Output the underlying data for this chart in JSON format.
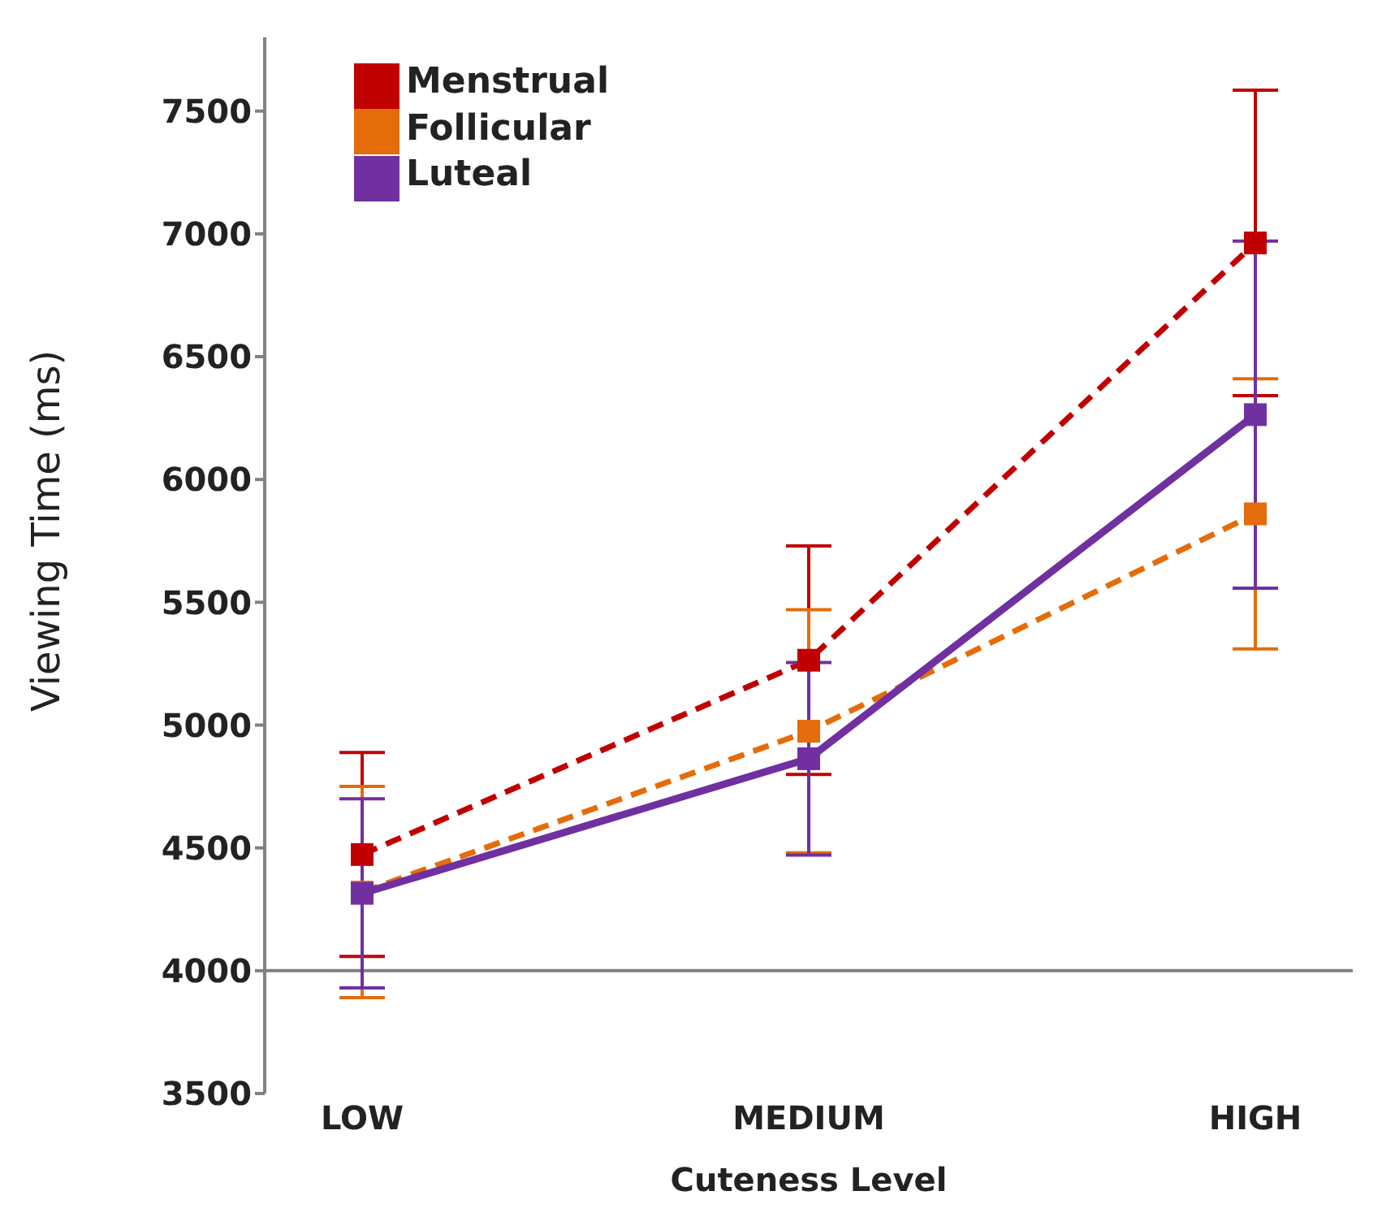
{
  "chart_data": {
    "type": "line",
    "xlabel": "Cuteness Level",
    "ylabel": "Viewing Time (ms)",
    "categories": [
      "LOW",
      "MEDIUM",
      "HIGH"
    ],
    "series": [
      {
        "name": "Menstrual",
        "color": "#c00000",
        "values": [
          4473,
          5264,
          6963
        ],
        "errors": [
          415,
          465,
          622
        ],
        "line_style": "dashed"
      },
      {
        "name": "Follicular",
        "color": "#e46c0a",
        "values": [
          4320,
          4975,
          5860
        ],
        "errors": [
          430,
          495,
          550
        ],
        "line_style": "dashed"
      },
      {
        "name": "Luteal",
        "color": "#7030a0",
        "values": [
          4315,
          4863,
          6264
        ],
        "errors": [
          385,
          392,
          707
        ],
        "line_style": "solid"
      }
    ],
    "ylim": [
      3500,
      7800
    ],
    "yticks": [
      3500,
      4000,
      4500,
      5000,
      5500,
      6000,
      6500,
      7000,
      7500
    ],
    "ref_lines": [
      {
        "axis": "y",
        "value": 4000,
        "color": "#808080"
      }
    ],
    "marker": "square",
    "grid": false,
    "legend": "top left"
  }
}
